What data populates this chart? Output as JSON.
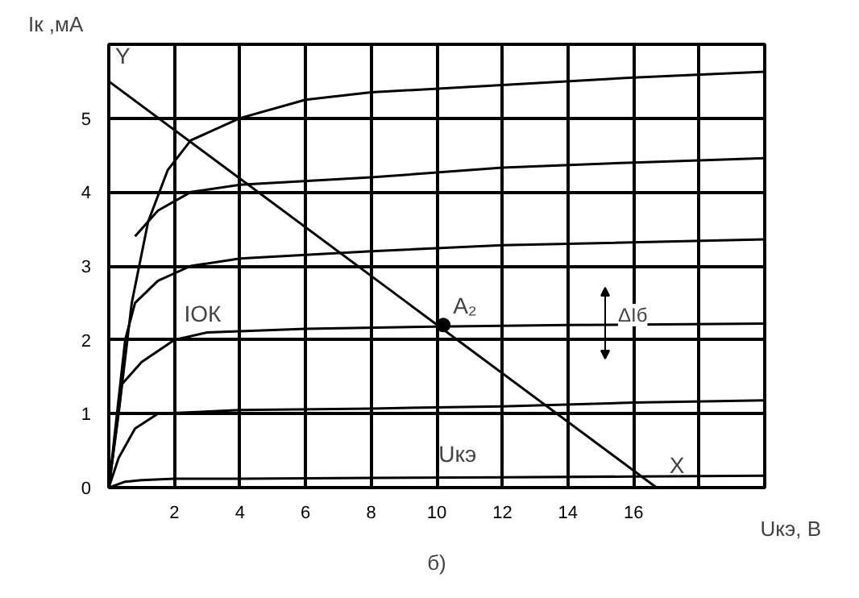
{
  "chart_data": {
    "type": "line",
    "xlabel": "Uкэ, В",
    "ylabel": "Iк ,мА",
    "xlim": [
      0,
      20
    ],
    "ylim": [
      0,
      6
    ],
    "xticks": [
      2,
      4,
      6,
      8,
      10,
      12,
      14,
      16,
      {
        "value": 18,
        "label": null
      },
      {
        "value": 20,
        "label": null
      }
    ],
    "yticks": [
      0,
      1,
      2,
      3,
      4,
      5,
      {
        "value": 6,
        "label": null
      }
    ],
    "grid": true,
    "line_style": "solid",
    "series": [
      {
        "color": "#000000",
        "x": [
          0,
          0.5,
          1,
          2,
          4,
          8,
          12,
          16,
          20
        ],
        "values": [
          0,
          0.08,
          0.1,
          0.12,
          0.12,
          0.13,
          0.14,
          0.15,
          0.16
        ]
      },
      {
        "color": "#000000",
        "x": [
          0,
          0.3,
          0.8,
          1.5,
          4,
          8,
          12,
          16,
          20
        ],
        "values": [
          0,
          0.4,
          0.8,
          1.0,
          1.05,
          1.07,
          1.1,
          1.15,
          1.18
        ]
      },
      {
        "color": "#000000",
        "x": [
          0,
          0.4,
          1,
          2,
          3,
          6,
          10,
          14,
          20
        ],
        "values": [
          0,
          1.4,
          1.7,
          2.0,
          2.1,
          2.15,
          2.18,
          2.2,
          2.22
        ]
      },
      {
        "color": "#000000",
        "x": [
          0,
          0.5,
          0.8,
          1.5,
          2.5,
          4,
          8,
          12,
          20
        ],
        "values": [
          0,
          2.0,
          2.5,
          2.8,
          3.0,
          3.1,
          3.2,
          3.28,
          3.36
        ]
      },
      {
        "color": "#000000",
        "x": [
          0.8,
          1.5,
          2.5,
          4,
          8,
          12,
          16,
          20
        ],
        "values": [
          3.4,
          3.75,
          4.0,
          4.1,
          4.2,
          4.33,
          4.4,
          4.46
        ]
      },
      {
        "color": "#000000",
        "x": [
          0,
          0.3,
          0.7,
          1.2,
          1.8,
          2.5,
          4,
          6,
          8,
          12,
          16,
          20
        ],
        "values": [
          0,
          1.0,
          2.5,
          3.6,
          4.3,
          4.7,
          5.0,
          5.25,
          5.35,
          5.45,
          5.55,
          5.63
        ]
      },
      {
        "color": "#000000",
        "x": [
          0,
          16.7
        ],
        "values": [
          5.5,
          0
        ]
      },
      {
        "type": "scatter",
        "color": "#000000",
        "x": [
          10.2
        ],
        "values": [
          2.2
        ]
      }
    ],
    "annotations": [
      {
        "text": "Y",
        "x": 0,
        "y": 5.5
      },
      {
        "text": "X",
        "x": 16.7,
        "y": 0
      },
      {
        "text": "A₂",
        "x": 10.2,
        "y": 2.2
      },
      {
        "text": "IОК",
        "x": 2.2,
        "y": 2.1
      },
      "ΔIб",
      {
        "text": "Uкэ",
        "x": 10.3,
        "y": 0.15
      },
      "б)"
    ]
  }
}
